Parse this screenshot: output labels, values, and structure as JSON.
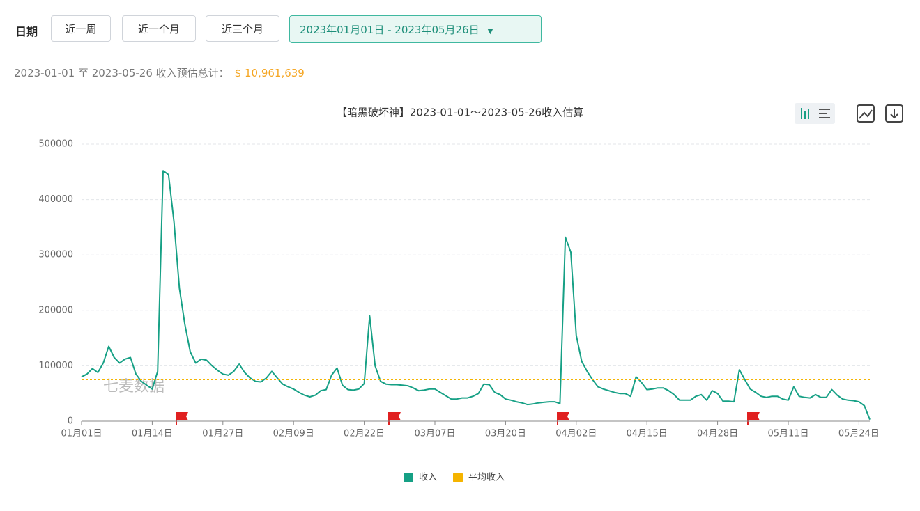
{
  "filter": {
    "label": "日期",
    "buttons": [
      "近一周",
      "近一个月",
      "近三个月"
    ],
    "date_range": "2023年01月01日 - 2023年05月26日"
  },
  "summary": {
    "text": "2023-01-01 至 2023-05-26 收入预估总计：",
    "total": "$ 10,961,639"
  },
  "watermark": "七麦数据",
  "chart_data": {
    "type": "line",
    "title": "【暗黑破坏神】2023-01-01～2023-05-26收入估算",
    "categories": [
      "01月01日",
      null,
      null,
      null,
      null,
      null,
      null,
      null,
      null,
      null,
      null,
      null,
      null,
      "01月14日",
      null,
      null,
      null,
      null,
      null,
      null,
      null,
      null,
      null,
      null,
      null,
      null,
      "01月27日",
      null,
      null,
      null,
      null,
      null,
      null,
      null,
      null,
      null,
      null,
      null,
      null,
      "02月09日",
      null,
      null,
      null,
      null,
      null,
      null,
      null,
      null,
      null,
      null,
      null,
      null,
      "02月22日",
      null,
      null,
      null,
      null,
      null,
      null,
      null,
      null,
      null,
      null,
      null,
      null,
      "03月07日",
      null,
      null,
      null,
      null,
      null,
      null,
      null,
      null,
      null,
      null,
      null,
      null,
      "03月20日",
      null,
      null,
      null,
      null,
      null,
      null,
      null,
      null,
      null,
      null,
      null,
      null,
      "04月02日",
      null,
      null,
      null,
      null,
      null,
      null,
      null,
      null,
      null,
      null,
      null,
      null,
      "04月15日",
      null,
      null,
      null,
      null,
      null,
      null,
      null,
      null,
      null,
      null,
      null,
      null,
      "04月28日",
      null,
      null,
      null,
      null,
      null,
      null,
      null,
      null,
      null,
      null,
      null,
      null,
      "05月11日",
      null,
      null,
      null,
      null,
      null,
      null,
      null,
      null,
      null,
      null,
      null,
      null,
      "05月24日",
      null,
      null
    ],
    "series": [
      {
        "name": "收入",
        "color": "#16a085",
        "values": [
          80000,
          85000,
          95000,
          88000,
          105000,
          135000,
          115000,
          105000,
          112000,
          115000,
          85000,
          72000,
          65000,
          58000,
          90000,
          452000,
          445000,
          360000,
          240000,
          175000,
          125000,
          105000,
          112000,
          110000,
          100000,
          92000,
          85000,
          83000,
          90000,
          103000,
          88000,
          78000,
          72000,
          71000,
          78000,
          90000,
          78000,
          67000,
          62000,
          58000,
          52000,
          47000,
          44000,
          47000,
          55000,
          57000,
          83000,
          96000,
          65000,
          57000,
          56000,
          58000,
          68000,
          190000,
          100000,
          72000,
          67000,
          66000,
          66000,
          65000,
          64000,
          60000,
          55000,
          56000,
          58000,
          58000,
          52000,
          46000,
          40000,
          40000,
          42000,
          42000,
          45000,
          50000,
          67000,
          66000,
          52000,
          48000,
          40000,
          38000,
          35000,
          33000,
          30000,
          31000,
          33000,
          34000,
          35000,
          35000,
          32000,
          332000,
          305000,
          155000,
          108000,
          90000,
          75000,
          62000,
          58000,
          55000,
          52000,
          50000,
          50000,
          45000,
          80000,
          70000,
          57000,
          58000,
          60000,
          60000,
          55000,
          48000,
          38000,
          38000,
          38000,
          45000,
          48000,
          38000,
          55000,
          50000,
          36000,
          36000,
          35000,
          93000,
          75000,
          58000,
          52000,
          45000,
          43000,
          45000,
          45000,
          40000,
          38000,
          62000,
          45000,
          43000,
          42000,
          48000,
          43000,
          43000,
          57000,
          47000,
          40000,
          38000,
          37000,
          35000,
          28000,
          3000
        ]
      },
      {
        "name": "平均收入",
        "color": "#f5b400",
        "value": 75080
      }
    ],
    "ylim": [
      0,
      500000
    ],
    "yticks": [
      0,
      100000,
      200000,
      300000,
      400000,
      500000
    ],
    "grid": true
  }
}
